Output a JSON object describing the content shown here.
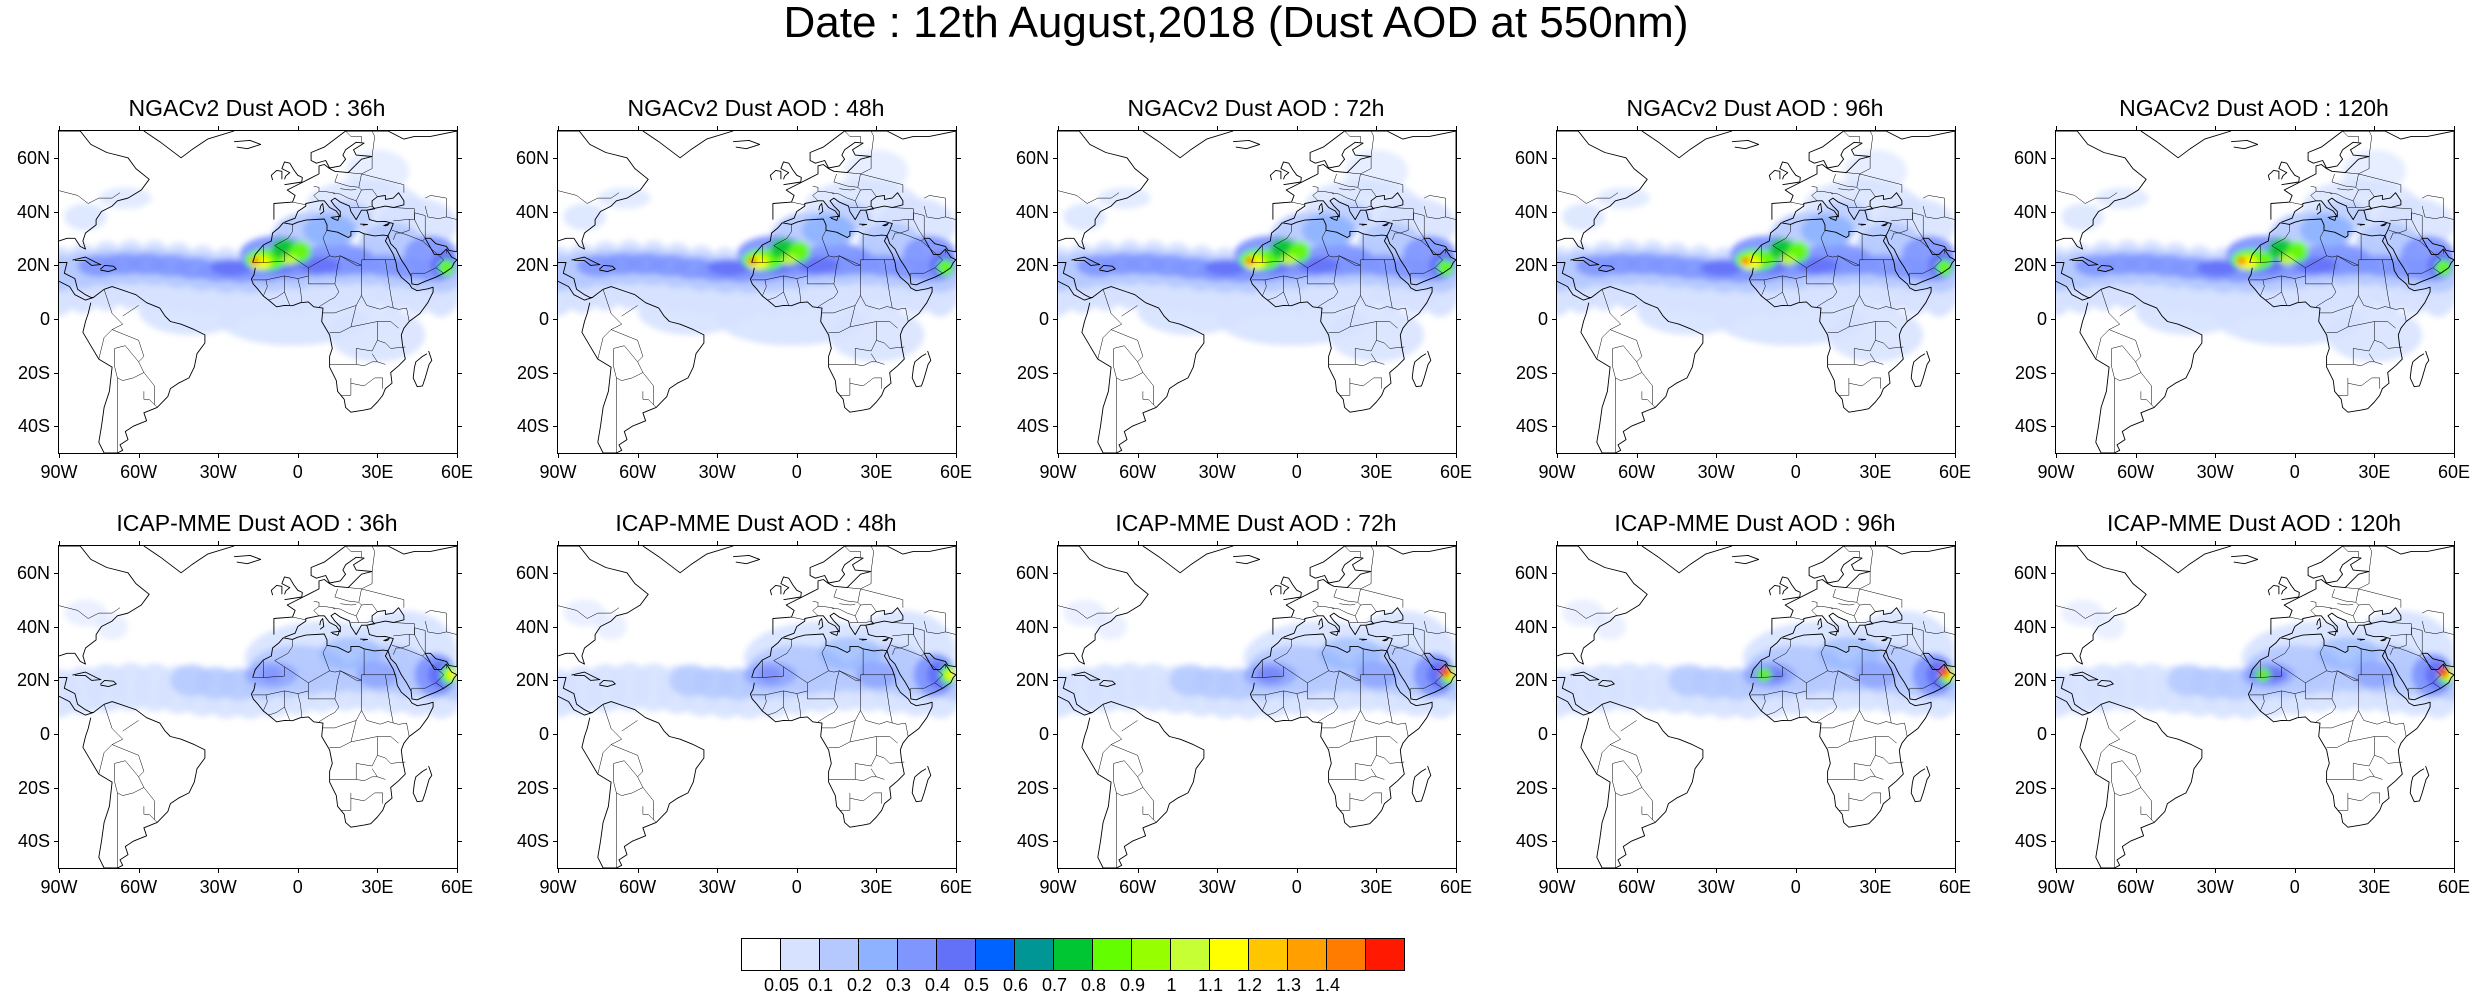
{
  "title": "Date : 12th August,2018 (Dust AOD at 550nm)",
  "panels": [
    {
      "title": "NGACv2 Dust AOD : 36h",
      "row": 0,
      "col": 0,
      "model": "ngac",
      "hour": 36
    },
    {
      "title": "NGACv2 Dust AOD : 48h",
      "row": 0,
      "col": 1,
      "model": "ngac",
      "hour": 48
    },
    {
      "title": "NGACv2 Dust AOD : 72h",
      "row": 0,
      "col": 2,
      "model": "ngac",
      "hour": 72
    },
    {
      "title": "NGACv2 Dust AOD : 96h",
      "row": 0,
      "col": 3,
      "model": "ngac",
      "hour": 96
    },
    {
      "title": "NGACv2 Dust AOD : 120h",
      "row": 0,
      "col": 4,
      "model": "ngac",
      "hour": 120
    },
    {
      "title": "ICAP-MME Dust AOD : 36h",
      "row": 1,
      "col": 0,
      "model": "icap",
      "hour": 36
    },
    {
      "title": "ICAP-MME Dust AOD : 48h",
      "row": 1,
      "col": 1,
      "model": "icap",
      "hour": 48
    },
    {
      "title": "ICAP-MME Dust AOD : 72h",
      "row": 1,
      "col": 2,
      "model": "icap",
      "hour": 72
    },
    {
      "title": "ICAP-MME Dust AOD : 96h",
      "row": 1,
      "col": 3,
      "model": "icap",
      "hour": 96
    },
    {
      "title": "ICAP-MME Dust AOD : 120h",
      "row": 1,
      "col": 4,
      "model": "icap",
      "hour": 120
    }
  ],
  "map_extent": {
    "lon": [
      -90,
      60
    ],
    "lat": [
      -50,
      70
    ]
  },
  "lon_ticks": [
    {
      "value": -90,
      "label": "90W"
    },
    {
      "value": -60,
      "label": "60W"
    },
    {
      "value": -30,
      "label": "30W"
    },
    {
      "value": 0,
      "label": "0"
    },
    {
      "value": 30,
      "label": "30E"
    },
    {
      "value": 60,
      "label": "60E"
    }
  ],
  "lat_ticks": [
    {
      "value": 60,
      "label": "60N"
    },
    {
      "value": 40,
      "label": "40N"
    },
    {
      "value": 20,
      "label": "20N"
    },
    {
      "value": 0,
      "label": "0"
    },
    {
      "value": -20,
      "label": "20S"
    },
    {
      "value": -40,
      "label": "40S"
    }
  ],
  "colorbar": {
    "levels": [
      "0.05",
      "0.1",
      "0.2",
      "0.3",
      "0.4",
      "0.5",
      "0.6",
      "0.7",
      "0.8",
      "0.9",
      "1",
      "1.1",
      "1.2",
      "1.3",
      "1.4"
    ],
    "colors": [
      "#ffffff",
      "#d6e2ff",
      "#b5c9ff",
      "#8eb2ff",
      "#7f96ff",
      "#6370f8",
      "#0063ff",
      "#009696",
      "#00c633",
      "#63ff00",
      "#96ff00",
      "#c6ff33",
      "#ffff00",
      "#ffc600",
      "#ffa000",
      "#ff7c00",
      "#ff1900"
    ]
  }
}
